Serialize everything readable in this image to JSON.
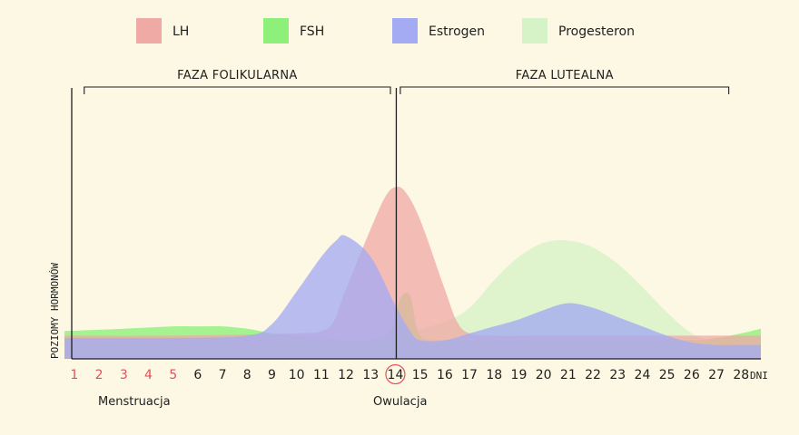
{
  "chart_data": {
    "type": "area",
    "xlabel": "DNI",
    "ylabel": "POZIOMY HORMONÓW",
    "x": [
      1,
      2,
      3,
      4,
      5,
      6,
      7,
      8,
      9,
      10,
      11,
      12,
      13,
      14,
      15,
      16,
      17,
      18,
      19,
      20,
      21,
      22,
      23,
      24,
      25,
      26,
      27,
      28
    ],
    "xlim": [
      0.6,
      28.8
    ],
    "ylim": [
      0,
      100
    ],
    "menstruation_days": [
      1,
      2,
      3,
      4,
      5
    ],
    "ovulation_day": 14,
    "tick_colors": {
      "menstruation": "#e0505a",
      "default": "#1e1e1e"
    },
    "phases": [
      {
        "label": "FAZA FOLIKULARNA",
        "from": 1.4,
        "to": 13.8
      },
      {
        "label": "FAZA LUTEALNA",
        "from": 14.2,
        "to": 27.5
      }
    ],
    "annotations": {
      "menstruation": "Menstruacja",
      "ovulation": "Owulacja"
    },
    "series": [
      {
        "name": "Progesteron",
        "color": "#d6f2c7",
        "x": [
          0.6,
          5,
          10,
          13,
          14,
          14.5,
          16,
          17,
          18,
          19,
          20,
          21,
          22,
          23,
          24,
          25,
          26,
          27,
          28,
          28.8
        ],
        "values": [
          6,
          6,
          6,
          6,
          8,
          11,
          16,
          22,
          34,
          44,
          50,
          51,
          48,
          41,
          31,
          20,
          11,
          7,
          6,
          6
        ]
      },
      {
        "name": "FSH",
        "color": "#8cf07a",
        "x": [
          0.6,
          3,
          5,
          6,
          7,
          8,
          9,
          10,
          11,
          12,
          13,
          13.8,
          14.2,
          14.6,
          15,
          16,
          18,
          20,
          22,
          24,
          26,
          27,
          28,
          28.8
        ],
        "values": [
          12,
          13,
          14,
          14,
          14,
          13,
          11,
          10,
          9,
          8,
          8,
          12,
          26,
          27,
          10,
          8,
          8,
          8,
          8,
          8,
          8,
          9,
          11,
          13
        ]
      },
      {
        "name": "LH",
        "color": "#f0aaa6",
        "x": [
          0.6,
          5,
          10,
          11,
          11.5,
          12,
          13,
          13.6,
          14,
          14.4,
          15,
          16,
          16.5,
          17,
          18,
          20,
          22,
          24,
          26,
          28,
          28.8
        ],
        "values": [
          10,
          10,
          11,
          12,
          16,
          30,
          56,
          70,
          74,
          72,
          60,
          30,
          16,
          11,
          10,
          10,
          10,
          10,
          10,
          10,
          10
        ]
      },
      {
        "name": "Estrogen",
        "color": "#a4abf2",
        "x": [
          0.6,
          5,
          8,
          9,
          10,
          11,
          11.6,
          12,
          13,
          14,
          14.6,
          15,
          16,
          17,
          18,
          19,
          20,
          21,
          22,
          23,
          24,
          25,
          26,
          27,
          28,
          28.8
        ],
        "values": [
          9,
          9,
          10,
          15,
          29,
          44,
          51,
          53,
          44,
          23,
          12,
          8,
          8,
          11,
          14,
          17,
          21,
          24,
          22,
          18,
          14,
          10,
          7,
          6,
          6,
          6
        ]
      }
    ]
  }
}
